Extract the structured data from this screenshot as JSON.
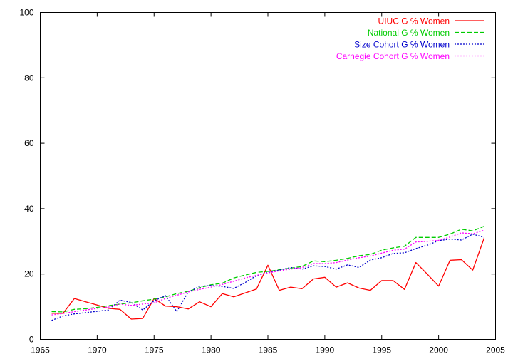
{
  "chart_data": {
    "type": "line",
    "title": "",
    "xlabel": "",
    "ylabel": "",
    "xlim": [
      1965,
      2005
    ],
    "ylim": [
      0,
      100
    ],
    "xticks": [
      1965,
      1970,
      1975,
      1980,
      1985,
      1990,
      1995,
      2000,
      2005
    ],
    "yticks": [
      0,
      20,
      40,
      60,
      80,
      100
    ],
    "grid": false,
    "legend_position": "top-right",
    "x": [
      1966,
      1967,
      1968,
      1969,
      1970,
      1971,
      1972,
      1973,
      1974,
      1975,
      1976,
      1977,
      1978,
      1979,
      1980,
      1981,
      1982,
      1983,
      1984,
      1985,
      1986,
      1987,
      1988,
      1989,
      1990,
      1991,
      1992,
      1993,
      1994,
      1995,
      1996,
      1997,
      1998,
      1999,
      2000,
      2001,
      2002,
      2003,
      2004
    ],
    "series": [
      {
        "name": "UIUC G % Women",
        "color": "#ff0000",
        "dash": "solid",
        "values": [
          8.0,
          8.0,
          12.5,
          11.5,
          10.5,
          9.5,
          9.2,
          6.2,
          6.4,
          12.5,
          10.2,
          10.0,
          9.3,
          11.5,
          10.0,
          14.0,
          13.0,
          14.2,
          15.4,
          22.7,
          15.0,
          16.0,
          15.5,
          18.5,
          19.0,
          16.0,
          17.3,
          15.7,
          15.0,
          18.0,
          18.0,
          15.3,
          23.5,
          20.0,
          16.3,
          24.2,
          24.4,
          21.2,
          31.0
        ]
      },
      {
        "name": "National G % Women",
        "color": "#00cc00",
        "dash": "dashed",
        "values": [
          8.5,
          8.4,
          9.2,
          9.4,
          9.8,
          10.3,
          10.8,
          11.2,
          11.8,
          12.3,
          13.0,
          14.0,
          14.7,
          15.8,
          16.7,
          17.2,
          18.8,
          19.7,
          20.5,
          20.8,
          21.3,
          21.8,
          22.3,
          24.0,
          23.8,
          24.2,
          24.8,
          25.6,
          26.0,
          27.3,
          28.0,
          28.5,
          31.2,
          31.2,
          31.2,
          32.2,
          33.7,
          33.2,
          34.6
        ]
      },
      {
        "name": "Size Cohort G % Women",
        "color": "#0000cc",
        "dash": "dotted",
        "values": [
          5.8,
          7.2,
          7.8,
          8.2,
          8.6,
          9.0,
          12.0,
          11.3,
          9.0,
          11.8,
          13.4,
          8.5,
          14.5,
          16.2,
          16.5,
          16.2,
          15.6,
          17.4,
          19.5,
          20.5,
          21.2,
          22.0,
          21.5,
          22.5,
          22.3,
          21.5,
          22.8,
          22.0,
          24.3,
          25.0,
          26.3,
          26.5,
          27.8,
          28.8,
          30.2,
          30.7,
          30.4,
          32.2,
          31.2
        ]
      },
      {
        "name": "Carnegie Cohort G % Women",
        "color": "#ff00ff",
        "dash": "dotted",
        "values": [
          7.5,
          7.9,
          8.5,
          9.0,
          9.5,
          9.9,
          10.8,
          10.4,
          10.8,
          11.2,
          12.5,
          13.5,
          14.5,
          15.3,
          16.0,
          16.8,
          17.8,
          18.8,
          19.6,
          20.3,
          21.0,
          21.5,
          22.0,
          23.2,
          23.2,
          23.5,
          24.3,
          25.0,
          25.5,
          26.4,
          27.3,
          27.6,
          29.8,
          30.0,
          30.3,
          31.3,
          32.6,
          32.3,
          33.4
        ]
      }
    ]
  }
}
